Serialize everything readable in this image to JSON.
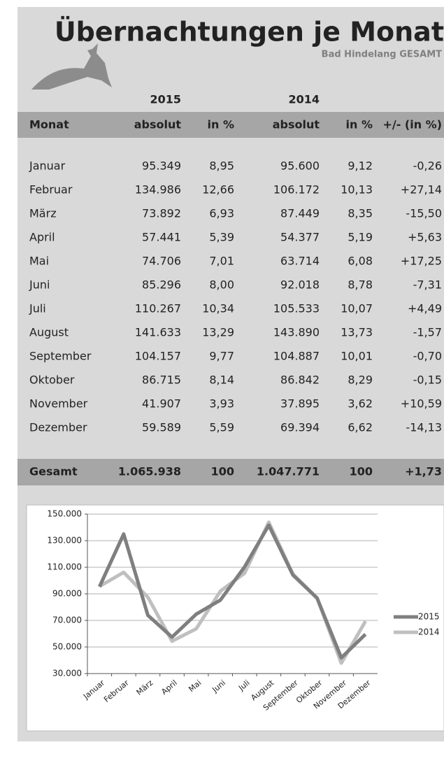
{
  "header": {
    "title": "Übernachtungen je Monat",
    "subtitle": "Bad Hindelang GESAMT"
  },
  "table": {
    "years": [
      "2015",
      "2014"
    ],
    "headers": [
      "Monat",
      "absolut",
      "in %",
      "absolut",
      "in %",
      "+/- (in %)"
    ],
    "rows": [
      [
        "Januar",
        "95.349",
        "8,95",
        "95.600",
        "9,12",
        "-0,26"
      ],
      [
        "Februar",
        "134.986",
        "12,66",
        "106.172",
        "10,13",
        "+27,14"
      ],
      [
        "März",
        "73.892",
        "6,93",
        "87.449",
        "8,35",
        "-15,50"
      ],
      [
        "April",
        "57.441",
        "5,39",
        "54.377",
        "5,19",
        "+5,63"
      ],
      [
        "Mai",
        "74.706",
        "7,01",
        "63.714",
        "6,08",
        "+17,25"
      ],
      [
        "Juni",
        "85.296",
        "8,00",
        "92.018",
        "8,78",
        "-7,31"
      ],
      [
        "Juli",
        "110.267",
        "10,34",
        "105.533",
        "10,07",
        "+4,49"
      ],
      [
        "August",
        "141.633",
        "13,29",
        "143.890",
        "13,73",
        "-1,57"
      ],
      [
        "September",
        "104.157",
        "9,77",
        "104.887",
        "10,01",
        "-0,70"
      ],
      [
        "Oktober",
        "86.715",
        "8,14",
        "86.842",
        "8,29",
        "-0,15"
      ],
      [
        "November",
        "41.907",
        "3,93",
        "37.895",
        "3,62",
        "+10,59"
      ],
      [
        "Dezember",
        "59.589",
        "5,59",
        "69.394",
        "6,62",
        "-14,13"
      ]
    ],
    "total": [
      "Gesamt",
      "1.065.938",
      "100",
      "1.047.771",
      "100",
      "+1,73"
    ]
  },
  "chart_data": {
    "type": "line",
    "categories": [
      "Januar",
      "Februar",
      "März",
      "April",
      "Mai",
      "Juni",
      "Juli",
      "August",
      "September",
      "Oktober",
      "November",
      "Dezember"
    ],
    "series": [
      {
        "name": "2015",
        "color": "#7f7f7f",
        "values": [
          95349,
          134986,
          73892,
          57441,
          74706,
          85296,
          110267,
          141633,
          104157,
          86715,
          41907,
          59589
        ]
      },
      {
        "name": "2014",
        "color": "#bfbfbf",
        "values": [
          95600,
          106172,
          87449,
          54377,
          63714,
          92018,
          105533,
          143890,
          104887,
          86842,
          37895,
          69394
        ]
      }
    ],
    "ylim": [
      30000,
      150000
    ],
    "yticks": [
      {
        "value": 30000,
        "label": "30.000"
      },
      {
        "value": 50000,
        "label": "50.000"
      },
      {
        "value": 70000,
        "label": "70.000"
      },
      {
        "value": 90000,
        "label": "90.000"
      },
      {
        "value": 110000,
        "label": "110.000"
      },
      {
        "value": 130000,
        "label": "130.000"
      },
      {
        "value": 150000,
        "label": "150.000"
      }
    ],
    "grid": true,
    "legend": "right"
  }
}
